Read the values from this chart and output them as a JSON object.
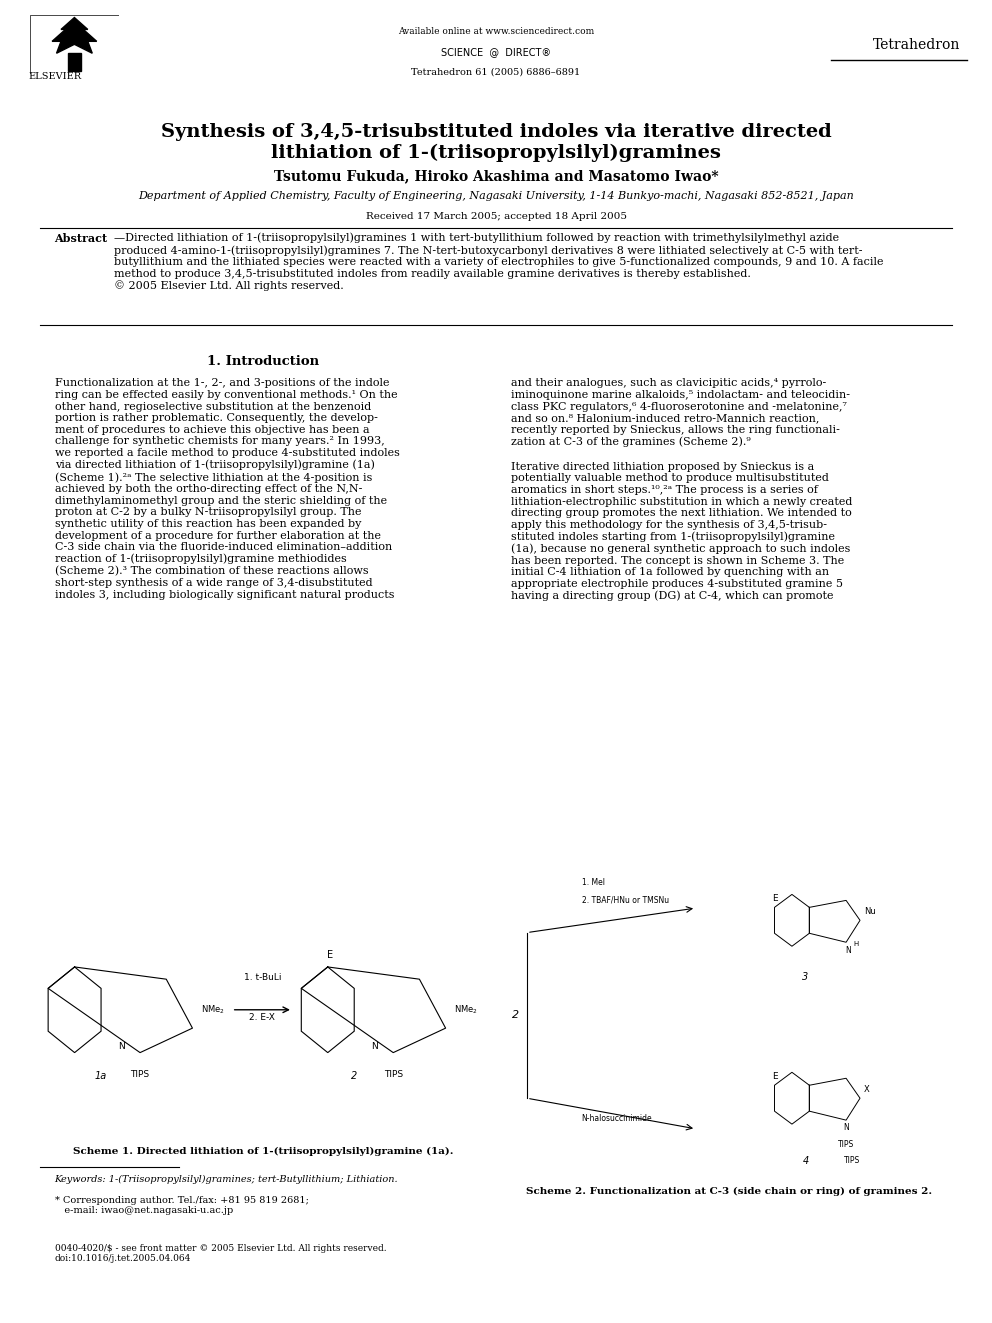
{
  "background_color": "#ffffff",
  "page_width": 9.92,
  "page_height": 13.23,
  "dpi": 100,
  "header": {
    "available_online": "Available online at www.sciencedirect.com",
    "journal_name": "Tetrahedron",
    "journal_info": "Tetrahedron 61 (2005) 6886–6891",
    "elsevier_text": "ELSEVIER"
  },
  "title": "Synthesis of 3,4,5-trisubstituted indoles via iterative directed\nlithiation of 1-(triisopropylsilyl)gramines",
  "authors": "Tsutomu Fukuda, Hiroko Akashima and Masatomo Iwao*",
  "affiliation": "Department of Applied Chemistry, Faculty of Engineering, Nagasaki University, 1-14 Bunkyo-machi, Nagasaki 852-8521, Japan",
  "received": "Received 17 March 2005; accepted 18 April 2005",
  "abstract_label": "Abstract",
  "abstract_text": "—Directed lithiation of 1-(triisopropylsilyl)gramines 1 with tert-butyllithium followed by reaction with trimethylsilylmethyl azide\nproduced 4-amino-1-(triisopropylsilyl)gramines 7. The N-tert-butoxycarbonyl derivatives 8 were lithiated selectively at C-5 with tert-\nbutyllithium and the lithiated species were reacted with a variety of electrophiles to give 5-functionalized compounds, 9 and 10. A facile\nmethod to produce 3,4,5-trisubstituted indoles from readily available gramine derivatives is thereby established.\n© 2005 Elsevier Ltd. All rights reserved.",
  "section1_title": "1. Introduction",
  "col1_para1": "Functionalization at the 1-, 2-, and 3-positions of the indole\nring can be effected easily by conventional methods.¹ On the\nother hand, regioselective substitution at the benzenoid\nportion is rather problematic. Consequently, the develop-\nment of procedures to achieve this objective has been a\nchallenge for synthetic chemists for many years.² In 1993,\nwe reported a facile method to produce 4-substituted indoles\nvia directed lithiation of 1-(triisopropylsilyl)gramine (1a)\n(Scheme 1).²ᵃ The selective lithiation at the 4-position is\nachieved by both the ortho-directing effect of the N,N-\ndimethylaminomethyl group and the steric shielding of the\nproton at C-2 by a bulky N-triisopropylsilyl group. The\nsynthetic utility of this reaction has been expanded by\ndevelopment of a procedure for further elaboration at the\nC-3 side chain via the fluoride-induced elimination–addition\nreaction of 1-(triisopropylsilyl)gramine methiodides\n(Scheme 2).³ The combination of these reactions allows\nshort-step synthesis of a wide range of 3,4-disubstituted\nindoles 3, including biologically significant natural products",
  "col2_para1": "and their analogues, such as clavicipitic acids,⁴ pyrrolo-\niminoquinone marine alkaloids,⁵ indolactam- and teleocidin-\nclass PKC regulators,⁶ 4-fluoroserotonine and -melatonine,⁷\nand so on.⁸ Halonium-induced retro-Mannich reaction,\nrecently reported by Snieckus, allows the ring functionali-\nzation at C-3 of the gramines (Scheme 2).⁹",
  "col2_para2": "Iterative directed lithiation proposed by Snieckus is a\npotentially valuable method to produce multisubstituted\naromatics in short steps.¹⁰,²ᵃ The process is a series of\nlithiation-electrophilic substitution in which a newly created\ndirecting group promotes the next lithiation. We intended to\napply this methodology for the synthesis of 3,4,5-trisub-\nstituted indoles starting from 1-(triisopropylsilyl)gramine\n(1a), because no general synthetic approach to such indoles\nhas been reported. The concept is shown in Scheme 3. The\ninitial C-4 lithiation of 1a followed by quenching with an\nappropriate electrophile produces 4-substituted gramine 5\nhaving a directing group (DG) at C-4, which can promote",
  "scheme1_caption": "Scheme 1. Directed lithiation of 1-(triisopropylsilyl)gramine (1a).",
  "scheme2_caption": "Scheme 2. Functionalization at C-3 (side chain or ring) of gramines 2.",
  "keywords_text": "Keywords: 1-(Triisopropylsilyl)gramines; tert-Butyllithium; Lithiation.",
  "corresponding_author": "* Corresponding author. Tel./fax: +81 95 819 2681;\n   e-mail: iwao@net.nagasaki-u.ac.jp",
  "copyright_text": "0040-4020/$ - see front matter © 2005 Elsevier Ltd. All rights reserved.\ndoi:10.1016/j.tet.2005.04.064"
}
